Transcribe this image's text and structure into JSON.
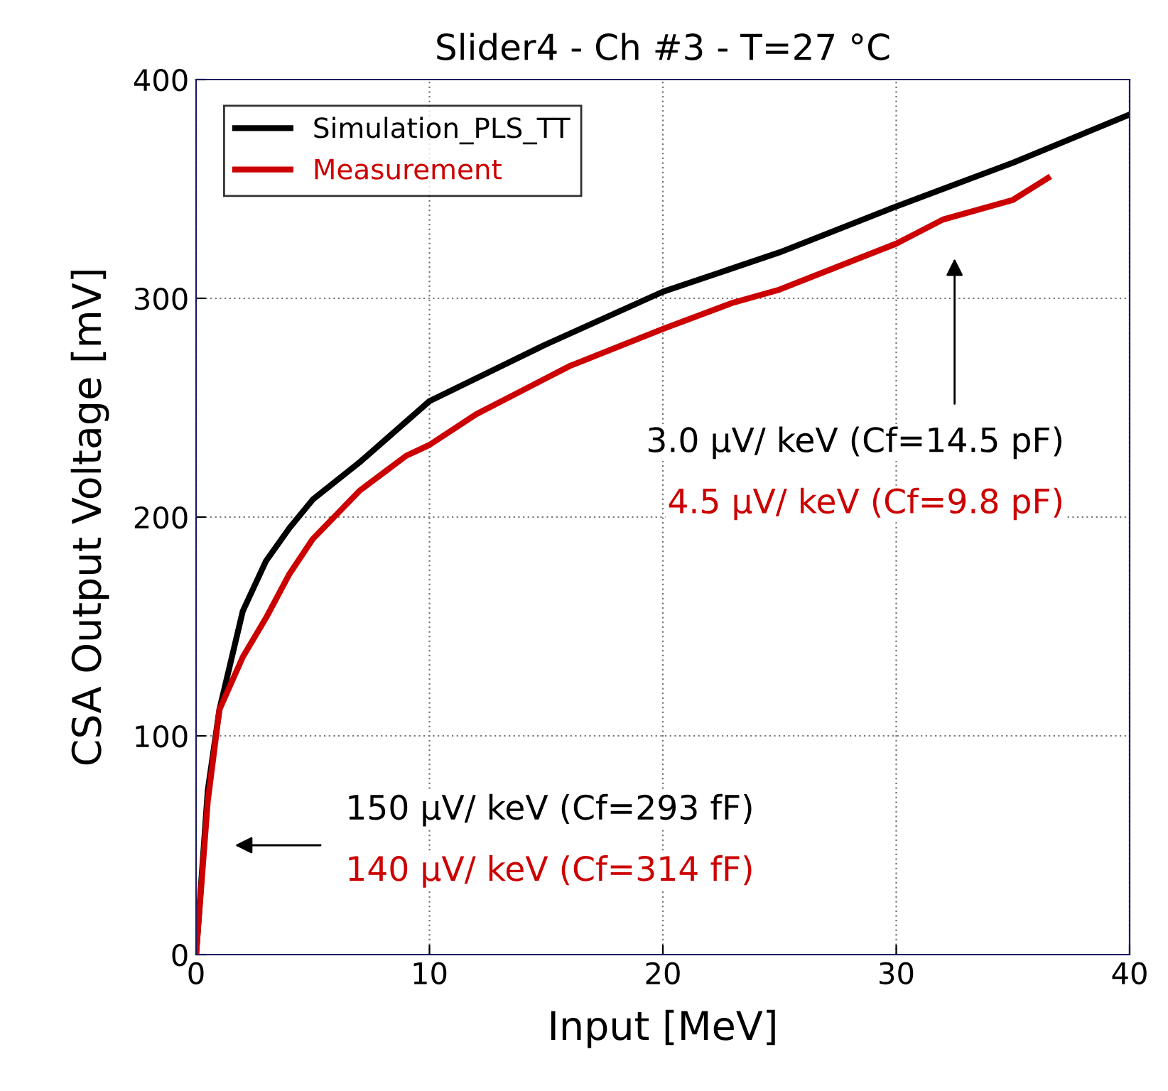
{
  "chart_data": {
    "type": "line",
    "title": "Slider4 - Ch #3 - T=27 °C",
    "xlabel": "Input [MeV]",
    "ylabel": "CSA Output Voltage [mV]",
    "xlim": [
      0,
      40
    ],
    "xticks": [
      0,
      10,
      20,
      30,
      40
    ],
    "ylim": [
      0,
      400
    ],
    "yticks": [
      0,
      100,
      200,
      300,
      400
    ],
    "grid": true,
    "legend": "top left",
    "line_style": "solid",
    "marker": "none",
    "series": [
      {
        "name": "Simulation_PLS_TT",
        "color": "#000000",
        "x": [
          0,
          0.5,
          1,
          2,
          3,
          4,
          5,
          7,
          10,
          15,
          20,
          25,
          30,
          35,
          40
        ],
        "values": [
          0,
          75,
          112,
          157,
          180,
          195,
          208,
          225,
          253,
          279,
          303,
          321,
          342,
          362,
          384
        ]
      },
      {
        "name": "Measurement",
        "color": "#cc0000",
        "x": [
          0,
          0.5,
          1,
          2,
          3,
          4,
          5,
          7,
          8,
          9,
          10,
          12,
          14,
          16,
          20,
          23,
          25,
          30,
          32,
          35,
          36.5
        ],
        "values": [
          0,
          70,
          112,
          136,
          154,
          174,
          190,
          212,
          220,
          228,
          233,
          247,
          258,
          269,
          286,
          298,
          304,
          325,
          336,
          345,
          355
        ]
      }
    ],
    "annotations": [
      "3.0 μV/ keV (Cf=14.5 pF)",
      "4.5 μV/ keV (Cf=9.8 pF)",
      "150 μV/ keV (Cf=293 fF)",
      "140 μV/ keV (Cf=314 fF)"
    ]
  }
}
